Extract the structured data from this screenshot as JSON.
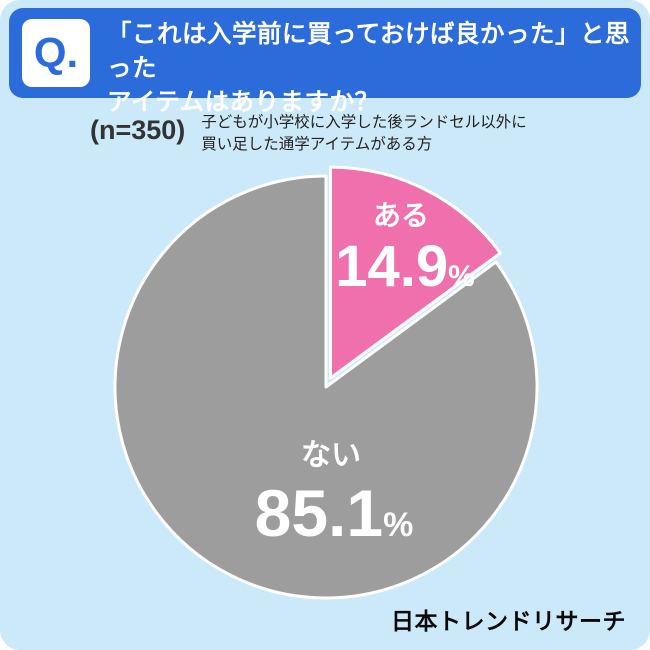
{
  "page": {
    "bg_color": "#CBE9F8",
    "banner_color": "#2B6BDA"
  },
  "header": {
    "q_label": "Q.",
    "line1": "「これは入学前に買っておけば良かった」と思った",
    "line2": "アイテムはありますか？"
  },
  "subtitle": {
    "n_label": "(n=350)",
    "note_line1": "子どもが小学校に入学した後ランドセル以外に",
    "note_line2": "買い足した通学アイテムがある方"
  },
  "chart_data": {
    "type": "pie",
    "title": "「これは入学前に買っておけば良かった」と思ったアイテムはありますか？",
    "n": 350,
    "categories": [
      "ある",
      "ない"
    ],
    "values": [
      14.9,
      85.1
    ],
    "colors": [
      "#F06FAD",
      "#9D9D9D"
    ],
    "start_angle_deg": 0,
    "clockwise": true,
    "explode": [
      10,
      0
    ],
    "legend_position": "none",
    "labels": {
      "aru": {
        "name": "ある",
        "value": "14.9",
        "unit": "%"
      },
      "nai": {
        "name": "ない",
        "value": "85.1",
        "unit": "%"
      }
    }
  },
  "footer": {
    "brand": "日本トレンドリサーチ"
  }
}
